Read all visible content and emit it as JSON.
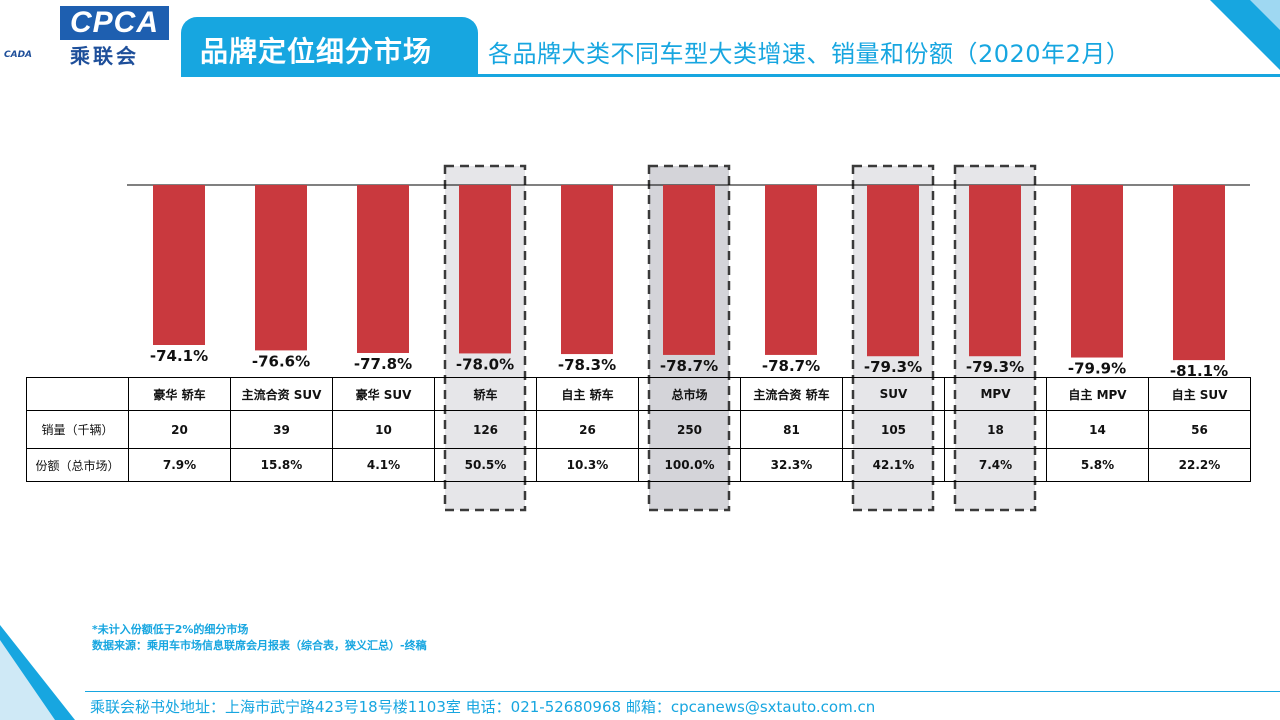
{
  "header": {
    "logo_text": "CPCA",
    "logo_cn": "乘联会",
    "logo_sub": "CADA",
    "section_title": "品牌定位细分市场",
    "page_subtitle": "各品牌大类不同车型大类增速、销量和份额（2020年2月）"
  },
  "colors": {
    "accent": "#17a6e0",
    "bar": "#c9393e",
    "highlight": "#e6e6e9"
  },
  "chart_data": {
    "type": "bar",
    "categories": [
      "豪华 轿车",
      "主流合资 SUV",
      "豪华 SUV",
      "轿车",
      "自主 轿车",
      "总市场",
      "主流合资 轿车",
      "SUV",
      "MPV",
      "自主 MPV",
      "自主 SUV"
    ],
    "values": [
      -74.1,
      -76.6,
      -77.8,
      -78.0,
      -78.3,
      -78.7,
      -78.7,
      -79.3,
      -79.3,
      -79.9,
      -81.1
    ],
    "value_labels": [
      "-74.1%",
      "-76.6%",
      "-77.8%",
      "-78.0%",
      "-78.3%",
      "-78.7%",
      "-78.7%",
      "-79.3%",
      "-79.3%",
      "-79.9%",
      "-81.1%"
    ],
    "unit": "%",
    "highlighted": [
      "轿车",
      "总市场",
      "SUV",
      "MPV"
    ],
    "emphasized": [
      "总市场"
    ],
    "grid": false
  },
  "table": {
    "row_labels": [
      "销量（千辆）",
      "份额（总市场）"
    ],
    "sales": [
      "20",
      "39",
      "10",
      "126",
      "26",
      "250",
      "81",
      "105",
      "18",
      "14",
      "56"
    ],
    "share": [
      "7.9%",
      "15.8%",
      "4.1%",
      "50.5%",
      "10.3%",
      "100.0%",
      "32.3%",
      "42.1%",
      "7.4%",
      "5.8%",
      "22.2%"
    ]
  },
  "notes": {
    "line1": "*未计入份额低于2%的细分市场",
    "line2": "数据来源：乘用车市场信息联席会月报表（综合表，狭义汇总）-终稿"
  },
  "footer": {
    "address": "乘联会秘书处地址：上海市武宁路423号18号楼1103室   电话：021-52680968    邮箱：cpcanews@sxtauto.com.cn"
  }
}
